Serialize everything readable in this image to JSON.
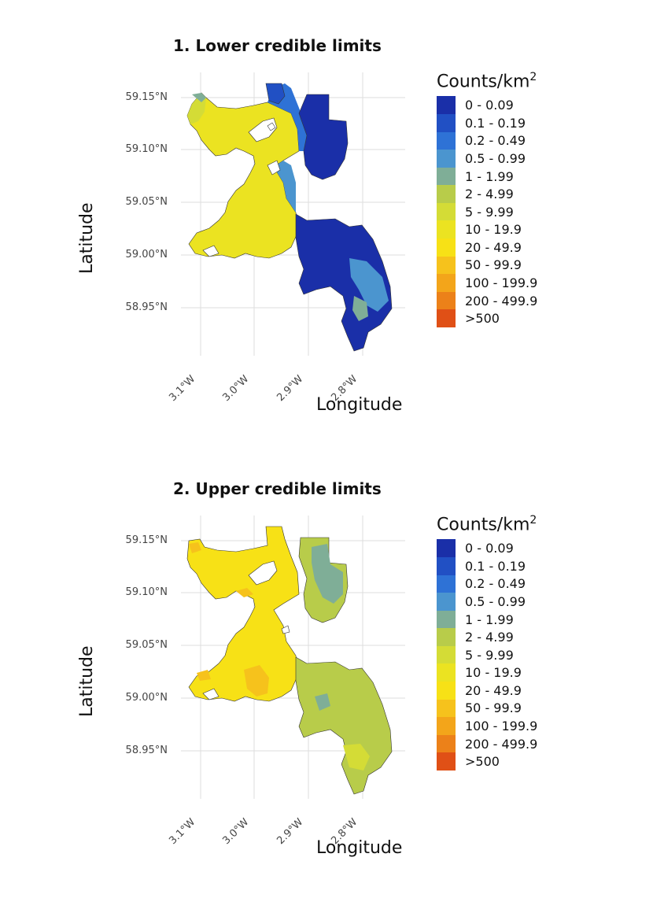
{
  "panels": [
    {
      "title": "1. Lower credible limits",
      "xlabel": "Longitude",
      "ylabel": "Latitude",
      "x_ticks": [
        "3.1°W",
        "3.0°W",
        "2.9°W",
        "2.8°W"
      ],
      "y_ticks": [
        "59.15°N",
        "59.10°N",
        "59.05°N",
        "59.00°N",
        "58.95°N"
      ],
      "legend_title": "Counts/km",
      "legend_title_sup": "2"
    },
    {
      "title": "2. Upper credible limits",
      "xlabel": "Longitude",
      "ylabel": "Latitude",
      "x_ticks": [
        "3.1°W",
        "3.0°W",
        "2.9°W",
        "2.8°W"
      ],
      "y_ticks": [
        "59.15°N",
        "59.10°N",
        "59.05°N",
        "59.00°N",
        "58.95°N"
      ],
      "legend_title": "Counts/km",
      "legend_title_sup": "2"
    }
  ],
  "legend": [
    {
      "label": "0 - 0.09",
      "color": "#1a2fa8"
    },
    {
      "label": "0.1 - 0.19",
      "color": "#2150c4"
    },
    {
      "label": "0.2 - 0.49",
      "color": "#2e72d6"
    },
    {
      "label": "0.5 - 0.99",
      "color": "#4b95cf"
    },
    {
      "label": "1 - 1.99",
      "color": "#7fae97"
    },
    {
      "label": "2 - 4.99",
      "color": "#b8cc4a"
    },
    {
      "label": "5 - 9.99",
      "color": "#d4dc36"
    },
    {
      "label": "10 - 19.9",
      "color": "#ebe321"
    },
    {
      "label": "20 - 49.9",
      "color": "#f7e116"
    },
    {
      "label": "50 - 99.9",
      "color": "#f6c21c"
    },
    {
      "label": "100 - 199.9",
      "color": "#f3a51a"
    },
    {
      "label": "200 - 499.9",
      "color": "#ec8119"
    },
    {
      "label": ">500",
      "color": "#e05016"
    }
  ],
  "map_fills": {
    "panel_1": {
      "west_region": "#ebe321",
      "east_region": "#1a2fa8",
      "transition": "#2e72d6",
      "accent": "#7fae97"
    },
    "panel_2": {
      "west_region": "#f7e116",
      "east_region": "#b8cc4a",
      "hotspot": "#f6c21c",
      "accent": "#7fae97"
    }
  }
}
